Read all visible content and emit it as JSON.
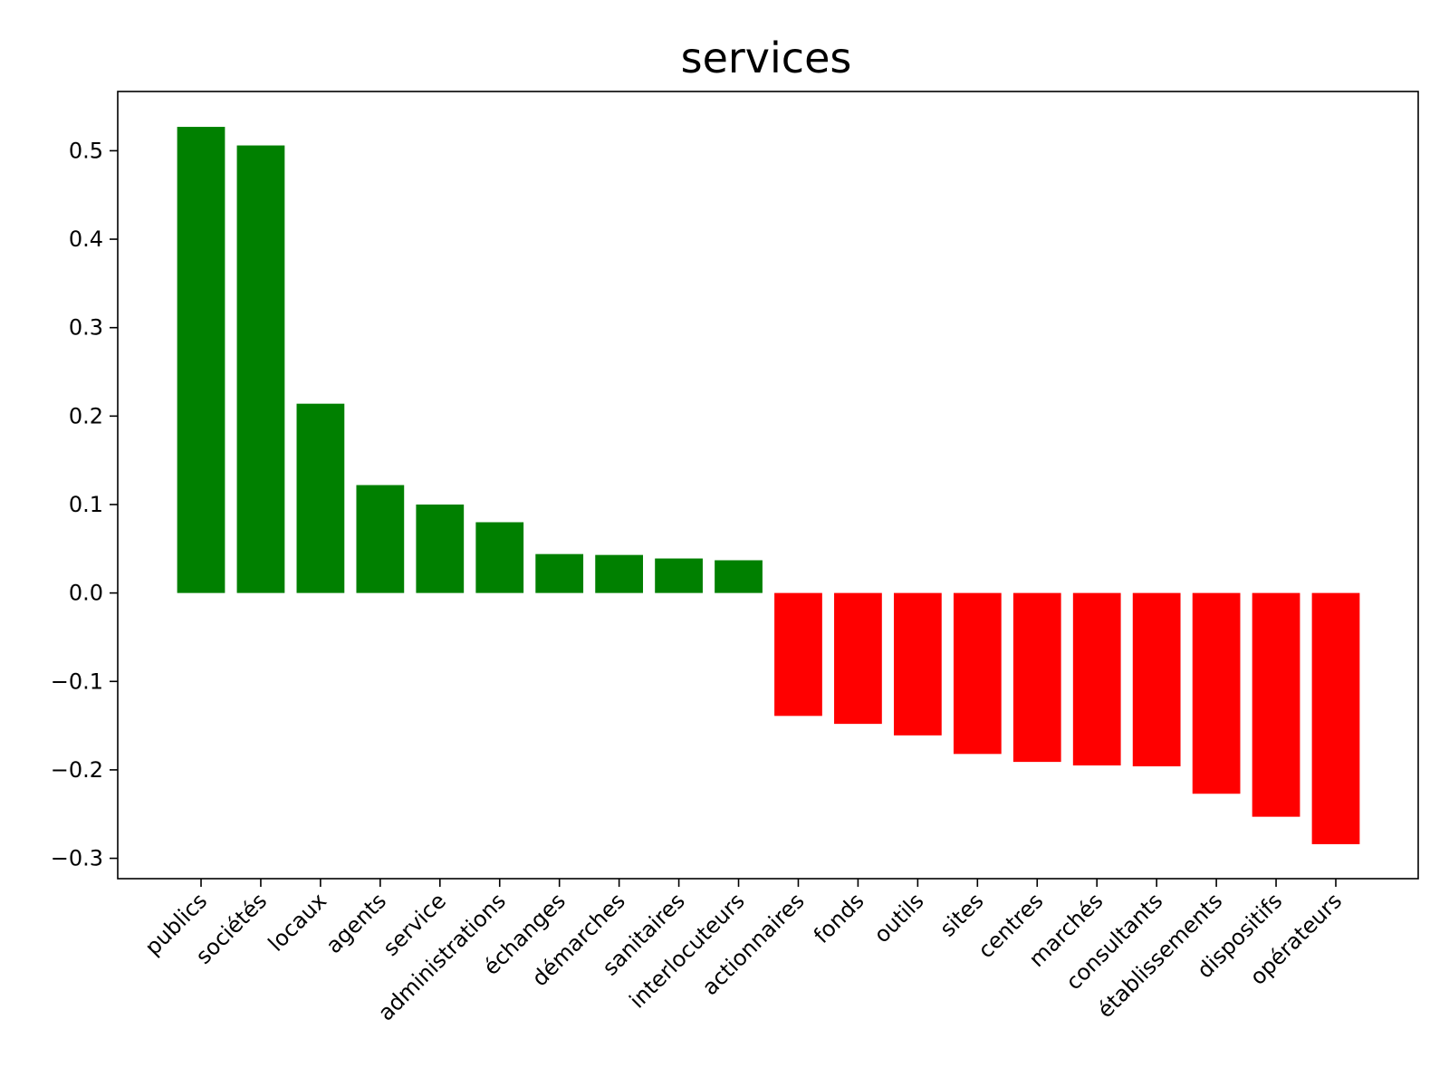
{
  "chart_data": {
    "type": "bar",
    "title": "services",
    "xlabel": "",
    "ylabel": "",
    "categories": [
      "publics",
      "sociétés",
      "locaux",
      "agents",
      "service",
      "administrations",
      "échanges",
      "démarches",
      "sanitaires",
      "interlocuteurs",
      "actionnaires",
      "fonds",
      "outils",
      "sites",
      "centres",
      "marchés",
      "consultants",
      "établissements",
      "dispositifs",
      "opérateurs"
    ],
    "values": [
      0.527,
      0.506,
      0.214,
      0.122,
      0.1,
      0.08,
      0.044,
      0.043,
      0.039,
      0.037,
      -0.139,
      -0.148,
      -0.161,
      -0.182,
      -0.191,
      -0.195,
      -0.196,
      -0.227,
      -0.253,
      -0.284
    ],
    "ylim": [
      -0.323,
      0.567
    ],
    "yticks": [
      -0.3,
      -0.2,
      -0.1,
      0.0,
      0.1,
      0.2,
      0.3,
      0.4,
      0.5
    ],
    "ytick_labels": [
      "−0.3",
      "−0.2",
      "−0.1",
      "0.0",
      "0.1",
      "0.2",
      "0.3",
      "0.4",
      "0.5"
    ],
    "grid": false,
    "colors": {
      "positive": "#008000",
      "negative": "#ff0000"
    }
  }
}
